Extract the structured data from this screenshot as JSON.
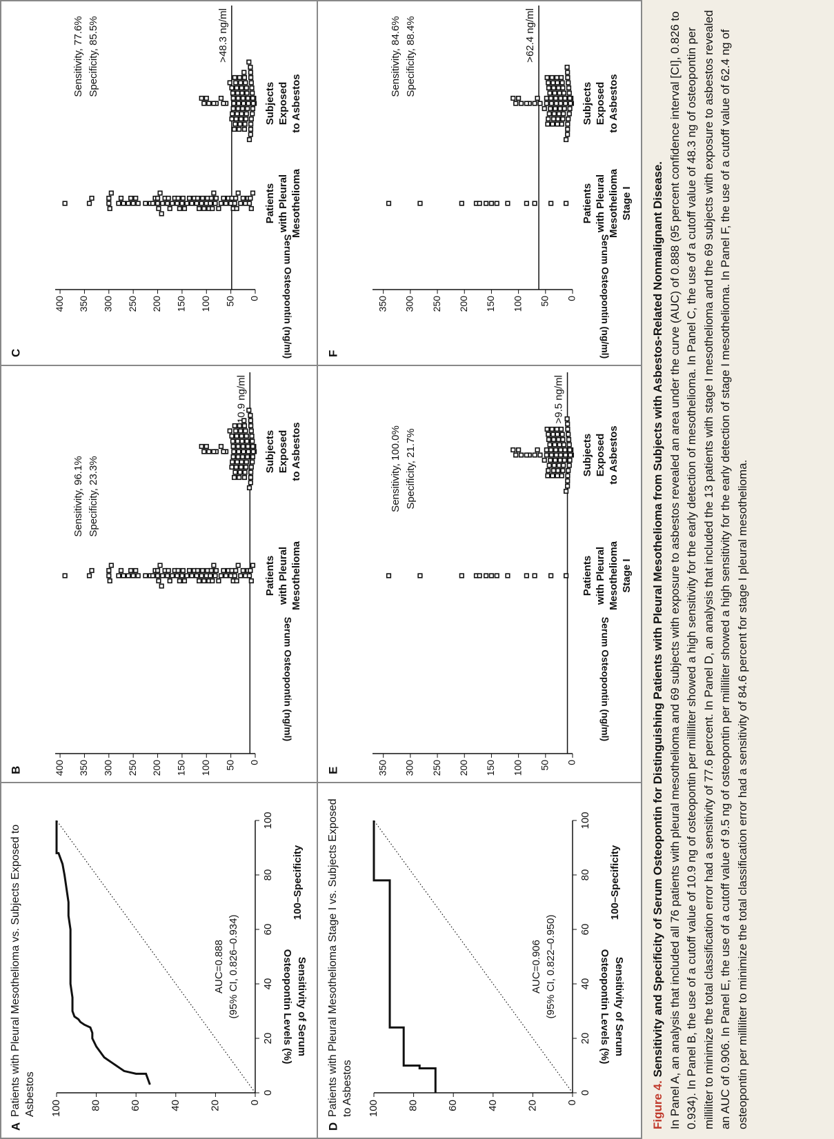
{
  "figure": {
    "label": "Figure 4.",
    "title": "Sensitivity and Specificity of Serum Osteopontin for Distinguishing Patients with Pleural Mesothelioma from Subjects with Asbestos-Related Nonmalignant Disease.",
    "text": "In Panel A, an analysis that included all 76 patients with pleural mesothelioma and 69 subjects with exposure to asbestos revealed an area under the curve (AUC) of 0.888 (95 percent confidence interval [CI], 0.826 to 0.934). In Panel B, the use of a cutoff value of 10.9 ng of osteopontin per milliliter showed a high sensitivity for the early detection of mesothelioma. In Panel C, the use of a cutoff value of 48.3 ng of osteopontin per milliliter to minimize the total classification error had a sensitivity of 77.6 percent. In Panel D, an analysis that included the 13 patients with stage I mesothelioma and the 69 subjects with exposure to asbestos revealed an AUC of 0.906. In Panel E, the use of a cutoff value of 9.5 ng of osteopontin per milliliter showed a high sensitivity for the early detection of stage I mesothelioma. In Panel F, the use of a cutoff value of 62.4 ng of osteopontin per milliliter to minimize the total classification error had a sensitivity of 84.6 percent for stage I pleural mesothelioma."
  },
  "chart_data": [
    {
      "type": "line",
      "panel": "A",
      "title": "Patients with Pleural Mesothelioma vs. Subjects Exposed to Asbestos",
      "xlabel": "100–Specificity",
      "ylabel": "Sensitivity of Serum Osteopontin Levels (%)",
      "annotations": [
        "AUC=0.888",
        "(95% CI, 0.826–0.934)"
      ],
      "xlim": [
        0,
        100
      ],
      "ylim": [
        0,
        100
      ],
      "xticks": [
        0,
        20,
        40,
        60,
        80,
        100
      ],
      "yticks": [
        0,
        20,
        40,
        60,
        80,
        100
      ],
      "x": [
        3,
        5,
        7,
        7,
        8,
        9,
        10,
        11,
        12,
        13,
        14,
        15,
        17,
        20,
        22,
        24,
        25,
        26,
        27,
        28,
        30,
        35,
        40,
        50,
        60,
        65,
        70,
        75,
        80,
        84,
        86,
        88,
        88,
        100
      ],
      "series": [
        {
          "color": "#111111",
          "values": [
            53,
            54,
            55,
            60,
            66,
            68,
            70,
            72,
            74,
            76,
            77,
            78,
            80,
            82,
            82,
            83,
            86,
            88,
            89,
            91,
            92,
            92,
            93,
            93,
            93,
            94,
            94,
            95,
            96,
            97,
            98,
            99,
            100,
            100
          ]
        }
      ]
    },
    {
      "type": "strip",
      "panel": "B",
      "ylabel": "Serum Osteopontin (ng/ml)",
      "ylim": [
        0,
        410
      ],
      "yticks": [
        0,
        50,
        100,
        150,
        200,
        250,
        300,
        350,
        400
      ],
      "cutoff": 10.9,
      "cutoff_label": ">10.9 ng/ml",
      "annotations": [
        "Sensitivity, 96.1%",
        "Specificity, 23.3%"
      ],
      "series": [
        {
          "name": [
            "Patients",
            "with Pleural",
            "Mesothelioma"
          ],
          "values": [
            390,
            340,
            335,
            300,
            300,
            298,
            295,
            280,
            275,
            270,
            260,
            255,
            250,
            245,
            240,
            225,
            215,
            210,
            205,
            200,
            200,
            198,
            195,
            192,
            190,
            185,
            180,
            178,
            175,
            170,
            165,
            160,
            158,
            155,
            150,
            148,
            145,
            140,
            135,
            130,
            125,
            120,
            118,
            115,
            110,
            108,
            105,
            100,
            98,
            95,
            92,
            90,
            88,
            85,
            82,
            80,
            75,
            70,
            65,
            60,
            55,
            50,
            48,
            45,
            42,
            40,
            38,
            35,
            30,
            25,
            20,
            15,
            12,
            10,
            8,
            5
          ]
        },
        {
          "name": [
            "Subjects",
            "Exposed",
            "to Asbestos"
          ],
          "values": [
            2,
            3,
            4,
            5,
            5,
            6,
            6,
            7,
            8,
            8,
            9,
            9,
            9.2,
            9.3,
            9.4,
            10,
            12,
            13,
            14,
            15,
            16,
            17,
            18,
            18,
            19,
            20,
            21,
            22,
            22,
            23,
            24,
            25,
            26,
            27,
            28,
            28,
            29,
            30,
            31,
            32,
            33,
            34,
            35,
            35,
            36,
            37,
            38,
            39,
            40,
            41,
            42,
            43,
            44,
            45,
            45,
            46,
            47,
            48,
            48,
            52,
            60,
            65,
            70,
            80,
            85,
            95,
            100,
            105,
            110
          ]
        }
      ]
    },
    {
      "type": "strip",
      "panel": "C",
      "ylabel": "Serum Osteopontin (ng/ml)",
      "ylim": [
        0,
        410
      ],
      "yticks": [
        0,
        50,
        100,
        150,
        200,
        250,
        300,
        350,
        400
      ],
      "cutoff": 48.3,
      "cutoff_label": ">48.3 ng/ml",
      "annotations": [
        "Sensitivity, 77.6%",
        "Specificity, 85.5%"
      ],
      "series": [
        {
          "name": [
            "Patients",
            "with Pleural",
            "Mesothelioma"
          ],
          "values": [
            390,
            340,
            335,
            300,
            300,
            298,
            295,
            280,
            275,
            270,
            260,
            255,
            250,
            245,
            240,
            225,
            215,
            210,
            205,
            200,
            200,
            198,
            195,
            192,
            190,
            185,
            180,
            178,
            175,
            170,
            165,
            160,
            158,
            155,
            150,
            148,
            145,
            140,
            135,
            130,
            125,
            120,
            118,
            115,
            110,
            108,
            105,
            100,
            98,
            95,
            92,
            90,
            88,
            85,
            82,
            80,
            75,
            70,
            65,
            60,
            55,
            50,
            48,
            45,
            42,
            40,
            38,
            35,
            30,
            25,
            20,
            15,
            12,
            10,
            8,
            5
          ]
        },
        {
          "name": [
            "Subjects",
            "Exposed",
            "to Asbestos"
          ],
          "values": [
            2,
            3,
            4,
            5,
            5,
            6,
            6,
            7,
            8,
            8,
            9,
            9,
            9.2,
            9.3,
            9.4,
            10,
            12,
            13,
            14,
            15,
            16,
            17,
            18,
            18,
            19,
            20,
            21,
            22,
            22,
            23,
            24,
            25,
            26,
            27,
            28,
            28,
            29,
            30,
            31,
            32,
            33,
            34,
            35,
            35,
            36,
            37,
            38,
            39,
            40,
            41,
            42,
            43,
            44,
            45,
            45,
            46,
            47,
            48,
            48,
            52,
            60,
            65,
            70,
            80,
            85,
            95,
            100,
            105,
            110
          ]
        }
      ]
    },
    {
      "type": "line",
      "panel": "D",
      "title": "Patients with Pleural Mesothelioma Stage I vs. Subjects Exposed to Asbestos",
      "xlabel": "100–Specificity",
      "ylabel": "Sensitivity of Serum Osteopontin Levels (%)",
      "annotations": [
        "AUC=0.906",
        "(95% CI, 0.822–0.950)"
      ],
      "xlim": [
        0,
        100
      ],
      "ylim": [
        0,
        100
      ],
      "xticks": [
        0,
        20,
        40,
        60,
        80,
        100
      ],
      "yticks": [
        0,
        20,
        40,
        60,
        80,
        100
      ],
      "x": [
        0,
        9,
        9,
        10,
        10,
        24,
        24,
        78,
        78,
        100
      ],
      "series": [
        {
          "color": "#111111",
          "values": [
            69,
            69,
            77,
            77,
            85,
            85,
            92,
            92,
            100,
            100
          ]
        }
      ]
    },
    {
      "type": "strip",
      "panel": "E",
      "ylabel": "Serum Osteopontin (ng/ml)",
      "ylim": [
        0,
        370
      ],
      "yticks": [
        0,
        50,
        100,
        150,
        200,
        250,
        300,
        350
      ],
      "cutoff": 9.5,
      "cutoff_label": ">9.5 ng/ml",
      "annotations": [
        "Sensitivity, 100.0%",
        "Specificity, 21.7%"
      ],
      "series": [
        {
          "name": [
            "Patients",
            "with Pleural",
            "Mesothelioma",
            "Stage I"
          ],
          "values": [
            340,
            282,
            205,
            178,
            172,
            160,
            150,
            140,
            120,
            85,
            70,
            40,
            12
          ]
        },
        {
          "name": [
            "Subjects",
            "Exposed",
            "to Asbestos"
          ],
          "values": [
            2,
            3,
            4,
            5,
            5,
            6,
            6,
            7,
            8,
            8,
            9,
            9,
            9.2,
            9.3,
            9.4,
            10,
            12,
            13,
            14,
            15,
            16,
            17,
            18,
            18,
            19,
            20,
            21,
            22,
            22,
            23,
            24,
            25,
            26,
            27,
            28,
            28,
            29,
            30,
            31,
            32,
            33,
            34,
            35,
            35,
            36,
            37,
            38,
            39,
            40,
            41,
            42,
            43,
            44,
            45,
            45,
            46,
            47,
            48,
            48,
            52,
            60,
            65,
            70,
            80,
            85,
            95,
            100,
            105,
            110
          ]
        }
      ]
    },
    {
      "type": "strip",
      "panel": "F",
      "ylabel": "Serum Osteopontin (ng/ml)",
      "ylim": [
        0,
        370
      ],
      "yticks": [
        0,
        50,
        100,
        150,
        200,
        250,
        300,
        350
      ],
      "cutoff": 62.4,
      "cutoff_label": ">62.4 ng/ml",
      "annotations": [
        "Sensitivity, 84.6%",
        "Specificity, 88.4%"
      ],
      "series": [
        {
          "name": [
            "Patients",
            "with Pleural",
            "Mesothelioma",
            "Stage I"
          ],
          "values": [
            340,
            282,
            205,
            178,
            172,
            160,
            150,
            140,
            120,
            85,
            70,
            40,
            12
          ]
        },
        {
          "name": [
            "Subjects",
            "Exposed",
            "to Asbestos"
          ],
          "values": [
            2,
            3,
            4,
            5,
            5,
            6,
            6,
            7,
            8,
            8,
            9,
            9,
            9.2,
            9.3,
            9.4,
            10,
            12,
            13,
            14,
            15,
            16,
            17,
            18,
            18,
            19,
            20,
            21,
            22,
            22,
            23,
            24,
            25,
            26,
            27,
            28,
            28,
            29,
            30,
            31,
            32,
            33,
            34,
            35,
            35,
            36,
            37,
            38,
            39,
            40,
            41,
            42,
            43,
            44,
            45,
            45,
            46,
            47,
            48,
            48,
            52,
            60,
            65,
            70,
            80,
            85,
            95,
            100,
            105,
            110
          ]
        }
      ]
    }
  ]
}
